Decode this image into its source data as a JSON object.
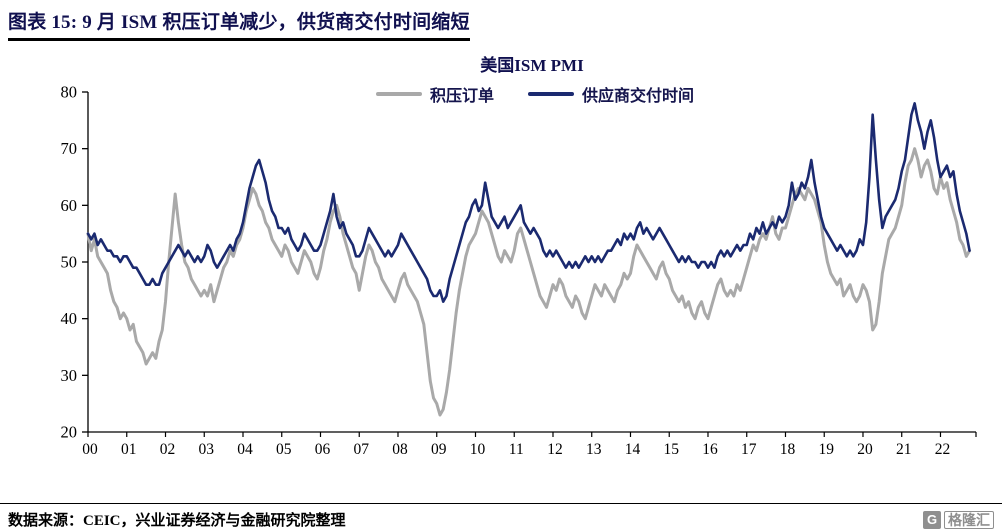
{
  "header": {
    "title": "图表 15: 9 月 ISM 积压订单减少，供货商交付时间缩短"
  },
  "footer": {
    "source": "数据来源：CEIC，兴业证券经济与金融研究院整理",
    "logo_letter": "G",
    "logo": "格隆汇"
  },
  "chart_data": {
    "type": "line",
    "title": "美国ISM PMI",
    "xlabel": "",
    "ylabel": "",
    "ylim": [
      20,
      80
    ],
    "yticks": [
      20,
      30,
      40,
      50,
      60,
      70,
      80
    ],
    "x_tick_labels": [
      "00",
      "01",
      "02",
      "03",
      "04",
      "05",
      "06",
      "07",
      "08",
      "09",
      "10",
      "11",
      "12",
      "13",
      "14",
      "15",
      "16",
      "17",
      "18",
      "19",
      "20",
      "21",
      "22"
    ],
    "x_unit": "monthly from Jan 2000",
    "x_total_months": 276,
    "grid": false,
    "legend_position": "top-center",
    "axis_color": "#000000",
    "series": [
      {
        "name": "积压订单",
        "color": "#a9a9a9",
        "width": 3,
        "values": [
          55,
          52,
          54,
          51,
          50,
          49,
          48,
          45,
          43,
          42,
          40,
          41,
          40,
          38,
          39,
          36,
          35,
          34,
          32,
          33,
          34,
          33,
          36,
          38,
          43,
          50,
          56,
          62,
          57,
          53,
          50,
          49,
          47,
          46,
          45,
          44,
          45,
          44,
          46,
          43,
          45,
          47,
          49,
          50,
          52,
          51,
          53,
          54,
          56,
          59,
          61,
          63,
          62,
          60,
          59,
          57,
          56,
          54,
          53,
          52,
          51,
          53,
          52,
          50,
          49,
          48,
          50,
          52,
          51,
          50,
          48,
          47,
          49,
          52,
          54,
          57,
          59,
          60,
          58,
          55,
          53,
          51,
          49,
          48,
          45,
          48,
          51,
          53,
          52,
          50,
          49,
          47,
          46,
          45,
          44,
          43,
          45,
          47,
          48,
          46,
          45,
          44,
          43,
          41,
          39,
          34,
          29,
          26,
          25,
          23,
          24,
          27,
          31,
          36,
          41,
          45,
          48,
          51,
          53,
          54,
          55,
          57,
          59,
          58,
          57,
          55,
          53,
          51,
          50,
          52,
          51,
          50,
          52,
          55,
          56,
          54,
          52,
          50,
          48,
          46,
          44,
          43,
          42,
          44,
          46,
          45,
          47,
          46,
          44,
          43,
          42,
          44,
          43,
          41,
          40,
          42,
          44,
          46,
          45,
          44,
          46,
          45,
          44,
          43,
          45,
          46,
          48,
          47,
          48,
          51,
          53,
          52,
          51,
          50,
          49,
          48,
          47,
          49,
          50,
          48,
          47,
          45,
          44,
          43,
          44,
          42,
          43,
          41,
          40,
          42,
          43,
          41,
          40,
          42,
          44,
          46,
          47,
          45,
          44,
          45,
          44,
          46,
          45,
          47,
          49,
          51,
          53,
          52,
          54,
          55,
          54,
          56,
          58,
          55,
          54,
          56,
          56,
          58,
          60,
          62,
          63,
          62,
          61,
          63,
          62,
          61,
          59,
          57,
          53,
          50,
          48,
          47,
          46,
          47,
          44,
          45,
          46,
          44,
          43,
          44,
          46,
          45,
          43,
          38,
          39,
          43,
          48,
          51,
          54,
          55,
          56,
          58,
          60,
          64,
          67,
          68,
          70,
          68,
          65,
          67,
          68,
          66,
          63,
          62,
          65,
          63,
          64,
          61,
          59,
          57,
          54,
          53,
          51,
          52
        ]
      },
      {
        "name": "供应商交付时间",
        "color": "#1b2a70",
        "width": 2.6,
        "values": [
          55,
          54,
          55,
          53,
          54,
          53,
          52,
          52,
          51,
          51,
          50,
          51,
          51,
          50,
          49,
          49,
          48,
          47,
          46,
          46,
          47,
          46,
          46,
          48,
          49,
          50,
          51,
          52,
          53,
          52,
          51,
          52,
          51,
          50,
          51,
          50,
          51,
          53,
          52,
          50,
          49,
          50,
          51,
          52,
          53,
          52,
          54,
          55,
          57,
          60,
          63,
          65,
          67,
          68,
          66,
          64,
          61,
          59,
          58,
          56,
          56,
          55,
          56,
          54,
          53,
          52,
          53,
          55,
          54,
          53,
          52,
          52,
          53,
          55,
          57,
          59,
          62,
          58,
          56,
          57,
          55,
          54,
          53,
          51,
          51,
          52,
          54,
          56,
          55,
          54,
          53,
          52,
          51,
          52,
          51,
          52,
          53,
          55,
          54,
          53,
          52,
          51,
          50,
          49,
          48,
          47,
          45,
          44,
          44,
          45,
          43,
          44,
          47,
          49,
          51,
          53,
          55,
          57,
          58,
          60,
          61,
          59,
          60,
          64,
          61,
          58,
          57,
          56,
          57,
          58,
          56,
          57,
          58,
          59,
          60,
          57,
          56,
          55,
          56,
          55,
          54,
          52,
          51,
          52,
          51,
          52,
          51,
          50,
          49,
          50,
          49,
          50,
          49,
          50,
          51,
          50,
          51,
          50,
          51,
          50,
          51,
          52,
          52,
          53,
          54,
          53,
          55,
          54,
          55,
          54,
          56,
          57,
          55,
          56,
          55,
          54,
          55,
          56,
          55,
          54,
          53,
          52,
          51,
          50,
          51,
          50,
          51,
          50,
          50,
          49,
          50,
          50,
          49,
          50,
          49,
          51,
          52,
          51,
          52,
          51,
          52,
          53,
          52,
          53,
          53,
          55,
          54,
          56,
          55,
          57,
          55,
          56,
          57,
          56,
          58,
          57,
          58,
          60,
          64,
          61,
          62,
          64,
          63,
          65,
          68,
          64,
          61,
          58,
          56,
          55,
          54,
          53,
          52,
          53,
          52,
          51,
          52,
          51,
          52,
          54,
          53,
          57,
          65,
          76,
          68,
          61,
          56,
          58,
          59,
          60,
          61,
          63,
          66,
          68,
          72,
          76,
          78,
          75,
          73,
          70,
          73,
          75,
          72,
          68,
          65,
          66,
          67,
          65,
          66,
          62,
          59,
          57,
          55,
          52
        ]
      }
    ]
  }
}
